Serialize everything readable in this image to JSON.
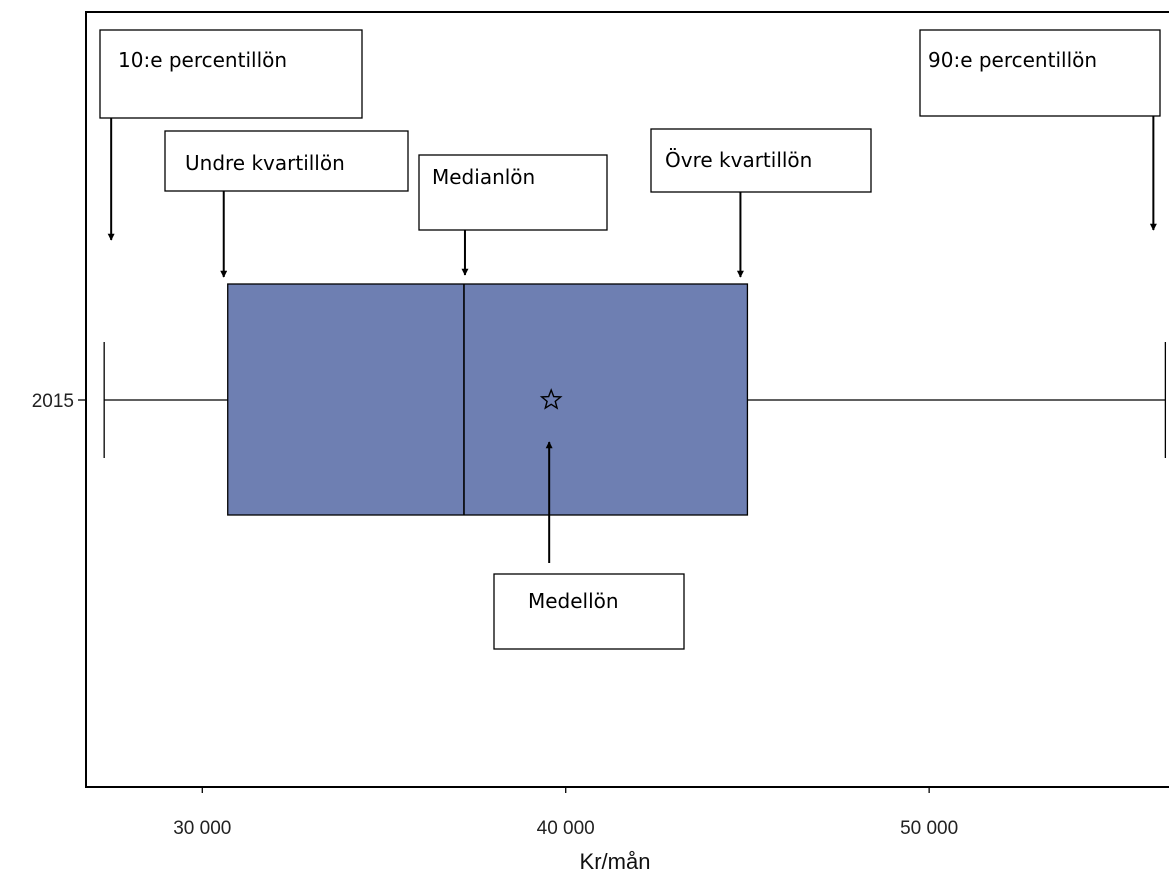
{
  "chart_data": {
    "type": "box",
    "title": "",
    "xlabel": "Kr/mån",
    "ylabel": "",
    "xlim": [
      26800,
      56600
    ],
    "x_ticks": [
      {
        "value": 30000,
        "label": "30 000"
      },
      {
        "value": 40000,
        "label": "40 000"
      },
      {
        "value": 50000,
        "label": "50 000"
      }
    ],
    "categories": [
      "2015"
    ],
    "box": {
      "category": "2015",
      "p10": 27300,
      "q1": 30700,
      "median": 37200,
      "mean": 39600,
      "q3": 45000,
      "p90": 56500
    },
    "fill_color": "#6e7fb2",
    "grid": false,
    "annotations": [
      {
        "key": "p10",
        "label": "10:e percentillön"
      },
      {
        "key": "q1",
        "label": "Undre kvartillön"
      },
      {
        "key": "median",
        "label": "Medianlön"
      },
      {
        "key": "q3",
        "label": "Övre kvartillön"
      },
      {
        "key": "p90",
        "label": "90:e percentillön"
      },
      {
        "key": "mean",
        "label": "Medellön"
      }
    ]
  }
}
